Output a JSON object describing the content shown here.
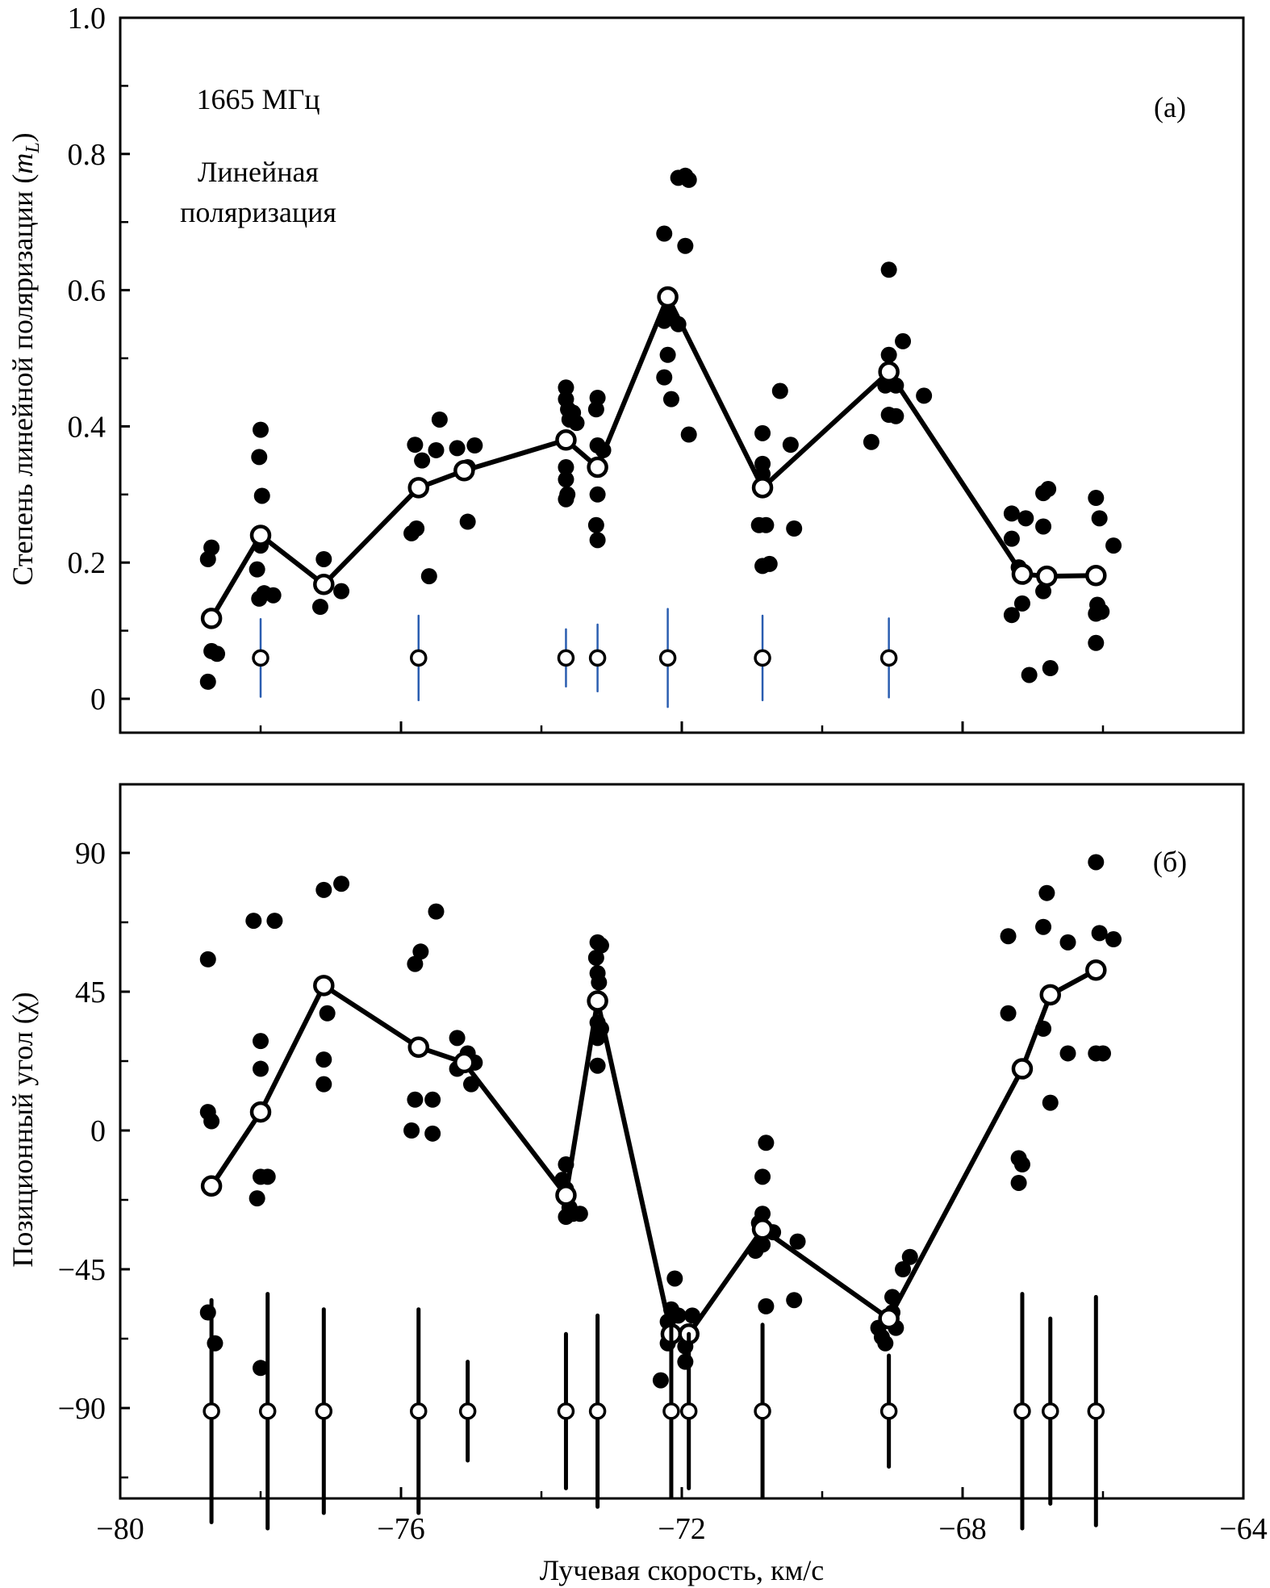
{
  "chart_data": [
    {
      "panel_label": "(a)",
      "type": "scatter",
      "annotations": [
        "1665 МГц",
        "Линейная",
        "поляризация"
      ],
      "xlabel": "",
      "ylabel": "Степень линейной поляризации (m_L)",
      "ylabel_main": "Степень линейной поляризации (",
      "ylabel_sym": "m",
      "ylabel_sub": "L",
      "ylabel_close": ")",
      "xlim": [
        -80,
        -64
      ],
      "ylim": [
        -0.05,
        1.0
      ],
      "x_ticks_major": [
        -80,
        -76,
        -72,
        -68,
        -64
      ],
      "x_ticks_minor": [
        -78,
        -74,
        -70,
        -66
      ],
      "y_ticks": [
        {
          "value": 0,
          "label": "0"
        },
        {
          "value": 0.2,
          "label": "0.2"
        },
        {
          "value": 0.4,
          "label": "0.4"
        },
        {
          "value": 0.6,
          "label": "0.6"
        },
        {
          "value": 0.8,
          "label": "0.8"
        },
        {
          "value": 1.0,
          "label": "1.0"
        }
      ],
      "y_ticks_minor": [
        0.1,
        0.3,
        0.5,
        0.7,
        0.9
      ],
      "grid": false,
      "series": [
        {
          "name": "individual measurements",
          "marker": "filled-circle",
          "points": [
            [
              -78.75,
              0.205
            ],
            [
              -78.7,
              0.222
            ],
            [
              -78.7,
              0.07
            ],
            [
              -78.62,
              0.066
            ],
            [
              -78.75,
              0.025
            ],
            [
              -78.0,
              0.395
            ],
            [
              -78.02,
              0.355
            ],
            [
              -77.98,
              0.298
            ],
            [
              -78.0,
              0.225
            ],
            [
              -78.05,
              0.19
            ],
            [
              -77.95,
              0.155
            ],
            [
              -78.02,
              0.147
            ],
            [
              -77.82,
              0.152
            ],
            [
              -77.1,
              0.205
            ],
            [
              -77.15,
              0.135
            ],
            [
              -76.85,
              0.158
            ],
            [
              -75.8,
              0.373
            ],
            [
              -75.7,
              0.35
            ],
            [
              -75.45,
              0.41
            ],
            [
              -75.5,
              0.365
            ],
            [
              -75.2,
              0.368
            ],
            [
              -75.85,
              0.243
            ],
            [
              -75.78,
              0.25
            ],
            [
              -75.6,
              0.18
            ],
            [
              -74.95,
              0.372
            ],
            [
              -75.05,
              0.34
            ],
            [
              -75.05,
              0.26
            ],
            [
              -73.65,
              0.457
            ],
            [
              -73.65,
              0.44
            ],
            [
              -73.62,
              0.425
            ],
            [
              -73.6,
              0.41
            ],
            [
              -73.55,
              0.42
            ],
            [
              -73.5,
              0.405
            ],
            [
              -73.65,
              0.34
            ],
            [
              -73.65,
              0.322
            ],
            [
              -73.63,
              0.3
            ],
            [
              -73.65,
              0.293
            ],
            [
              -73.2,
              0.442
            ],
            [
              -73.22,
              0.425
            ],
            [
              -73.2,
              0.372
            ],
            [
              -73.12,
              0.365
            ],
            [
              -73.2,
              0.3
            ],
            [
              -73.22,
              0.255
            ],
            [
              -73.2,
              0.233
            ],
            [
              -72.25,
              0.683
            ],
            [
              -72.2,
              0.565
            ],
            [
              -72.25,
              0.555
            ],
            [
              -72.05,
              0.55
            ],
            [
              -72.2,
              0.505
            ],
            [
              -72.25,
              0.472
            ],
            [
              -72.15,
              0.44
            ],
            [
              -71.95,
              0.665
            ],
            [
              -71.9,
              0.388
            ],
            [
              -72.05,
              0.765
            ],
            [
              -71.95,
              0.768
            ],
            [
              -71.9,
              0.762
            ],
            [
              -70.85,
              0.39
            ],
            [
              -70.85,
              0.345
            ],
            [
              -70.85,
              0.33
            ],
            [
              -70.6,
              0.452
            ],
            [
              -70.45,
              0.373
            ],
            [
              -70.9,
              0.255
            ],
            [
              -70.8,
              0.255
            ],
            [
              -70.85,
              0.195
            ],
            [
              -70.75,
              0.198
            ],
            [
              -70.4,
              0.25
            ],
            [
              -69.05,
              0.63
            ],
            [
              -69.05,
              0.505
            ],
            [
              -68.85,
              0.525
            ],
            [
              -69.1,
              0.46
            ],
            [
              -68.95,
              0.46
            ],
            [
              -69.05,
              0.417
            ],
            [
              -68.95,
              0.415
            ],
            [
              -69.3,
              0.377
            ],
            [
              -68.55,
              0.445
            ],
            [
              -67.3,
              0.272
            ],
            [
              -67.3,
              0.235
            ],
            [
              -67.1,
              0.265
            ],
            [
              -67.2,
              0.193
            ],
            [
              -67.15,
              0.14
            ],
            [
              -67.3,
              0.123
            ],
            [
              -67.05,
              0.035
            ],
            [
              -66.85,
              0.302
            ],
            [
              -66.78,
              0.308
            ],
            [
              -66.85,
              0.253
            ],
            [
              -66.85,
              0.158
            ],
            [
              -66.75,
              0.045
            ],
            [
              -66.1,
              0.295
            ],
            [
              -66.05,
              0.265
            ],
            [
              -65.85,
              0.225
            ],
            [
              -66.08,
              0.138
            ],
            [
              -66.02,
              0.128
            ],
            [
              -66.1,
              0.125
            ],
            [
              -66.1,
              0.082
            ]
          ]
        },
        {
          "name": "mean",
          "marker": "open-circle",
          "connected": true,
          "points": [
            [
              -78.7,
              0.118
            ],
            [
              -78.0,
              0.24
            ],
            [
              -77.1,
              0.168
            ],
            [
              -75.75,
              0.31
            ],
            [
              -75.1,
              0.335
            ],
            [
              -73.65,
              0.38
            ],
            [
              -73.2,
              0.34
            ],
            [
              -72.2,
              0.59
            ],
            [
              -70.85,
              0.31
            ],
            [
              -69.05,
              0.48
            ],
            [
              -67.15,
              0.183
            ],
            [
              -66.8,
              0.18
            ],
            [
              -66.1,
              0.181
            ]
          ]
        },
        {
          "name": "error bars",
          "marker": "open-circle",
          "color": "#2a5db0",
          "center": 0.06,
          "bars": [
            {
              "x": -78.0,
              "half": 0.057
            },
            {
              "x": -75.75,
              "half": 0.062
            },
            {
              "x": -73.65,
              "half": 0.042
            },
            {
              "x": -73.2,
              "half": 0.049
            },
            {
              "x": -72.2,
              "half": 0.072
            },
            {
              "x": -70.85,
              "half": 0.062
            },
            {
              "x": -69.05,
              "half": 0.058
            }
          ]
        }
      ]
    },
    {
      "panel_label": "(б)",
      "type": "scatter",
      "xlabel": "Лучевая скорость, км/с",
      "ylabel": "Позиционный угол (χ)",
      "xlim": [
        -80,
        -64
      ],
      "ylim": [
        -127,
        107
      ],
      "x_ticks_major": [
        {
          "value": -80,
          "label": "−80"
        },
        {
          "value": -76,
          "label": "−76"
        },
        {
          "value": -72,
          "label": "−72"
        },
        {
          "value": -68,
          "label": "−68"
        },
        {
          "value": -64,
          "label": "−64"
        }
      ],
      "x_ticks_minor": [
        -78,
        -74,
        -70,
        -66
      ],
      "y_ticks": [
        {
          "value": 90,
          "label": "90"
        },
        {
          "value": 45,
          "label": "45"
        },
        {
          "value": 0,
          "label": "0"
        },
        {
          "value": -45,
          "label": "−45"
        },
        {
          "value": -90,
          "label": "−90"
        }
      ],
      "y_ticks_minor": [
        67.5,
        22.5,
        -22.5,
        -67.5,
        -112.5
      ],
      "grid": false,
      "series": [
        {
          "name": "individual measurements",
          "marker": "filled-circle",
          "points": [
            [
              -78.75,
              55.5
            ],
            [
              -78.75,
              6
            ],
            [
              -78.7,
              3
            ],
            [
              -78.75,
              -59
            ],
            [
              -78.65,
              -69
            ],
            [
              -78.1,
              68
            ],
            [
              -77.8,
              68
            ],
            [
              -78.0,
              29
            ],
            [
              -78.0,
              20
            ],
            [
              -78.0,
              -15
            ],
            [
              -77.9,
              -15
            ],
            [
              -78.05,
              -22
            ],
            [
              -78.0,
              -77
            ],
            [
              -77.1,
              78
            ],
            [
              -76.85,
              80
            ],
            [
              -77.05,
              38
            ],
            [
              -77.1,
              23
            ],
            [
              -77.1,
              15
            ],
            [
              -75.8,
              54
            ],
            [
              -75.72,
              58
            ],
            [
              -75.5,
              71
            ],
            [
              -75.8,
              10
            ],
            [
              -75.55,
              10
            ],
            [
              -75.85,
              0
            ],
            [
              -75.55,
              -1
            ],
            [
              -75.2,
              30
            ],
            [
              -75.2,
              20
            ],
            [
              -75.05,
              25
            ],
            [
              -74.95,
              22
            ],
            [
              -75.0,
              15
            ],
            [
              -73.65,
              -11
            ],
            [
              -73.7,
              -16
            ],
            [
              -73.65,
              -19
            ],
            [
              -73.6,
              -25
            ],
            [
              -73.55,
              -27
            ],
            [
              -73.65,
              -28
            ],
            [
              -73.45,
              -27
            ],
            [
              -73.2,
              61
            ],
            [
              -73.15,
              60
            ],
            [
              -73.22,
              56
            ],
            [
              -73.2,
              51
            ],
            [
              -73.18,
              48
            ],
            [
              -73.2,
              35
            ],
            [
              -73.15,
              33
            ],
            [
              -73.2,
              30
            ],
            [
              -73.2,
              21
            ],
            [
              -72.3,
              -81
            ],
            [
              -72.2,
              -62
            ],
            [
              -72.15,
              -58
            ],
            [
              -72.1,
              -48
            ],
            [
              -72.05,
              -60
            ],
            [
              -71.95,
              -70
            ],
            [
              -71.95,
              -75
            ],
            [
              -71.85,
              -60
            ],
            [
              -72.2,
              -69
            ],
            [
              -70.8,
              -4
            ],
            [
              -70.85,
              -15
            ],
            [
              -70.85,
              -27
            ],
            [
              -70.9,
              -30
            ],
            [
              -70.7,
              -33
            ],
            [
              -70.85,
              -37
            ],
            [
              -70.95,
              -39
            ],
            [
              -70.35,
              -36
            ],
            [
              -70.8,
              -57
            ],
            [
              -70.4,
              -55
            ],
            [
              -68.75,
              -41
            ],
            [
              -68.85,
              -45
            ],
            [
              -69.0,
              -54
            ],
            [
              -69.0,
              -59
            ],
            [
              -69.2,
              -64
            ],
            [
              -69.15,
              -67
            ],
            [
              -68.95,
              -64
            ],
            [
              -69.1,
              -69
            ],
            [
              -67.35,
              38
            ],
            [
              -67.35,
              63
            ],
            [
              -67.2,
              -9
            ],
            [
              -67.15,
              -11
            ],
            [
              -67.2,
              -17
            ],
            [
              -66.85,
              66
            ],
            [
              -66.8,
              77
            ],
            [
              -66.85,
              33
            ],
            [
              -66.75,
              9
            ],
            [
              -66.5,
              61
            ],
            [
              -66.5,
              25
            ],
            [
              -66.1,
              87
            ],
            [
              -66.05,
              64
            ],
            [
              -65.85,
              62
            ],
            [
              -66.1,
              25
            ],
            [
              -66.0,
              25
            ]
          ]
        },
        {
          "name": "mean",
          "marker": "open-circle",
          "connected": true,
          "points": [
            [
              -78.7,
              -18
            ],
            [
              -78.0,
              6
            ],
            [
              -77.1,
              47
            ],
            [
              -75.75,
              27
            ],
            [
              -75.1,
              22
            ],
            [
              -73.65,
              -21
            ],
            [
              -73.2,
              42
            ],
            [
              -72.15,
              -66
            ],
            [
              -71.9,
              -66
            ],
            [
              -70.85,
              -32
            ],
            [
              -69.05,
              -61
            ],
            [
              -67.15,
              20
            ],
            [
              -66.75,
              44
            ],
            [
              -66.1,
              52
            ]
          ]
        },
        {
          "name": "error bars",
          "marker": "open-circle",
          "color": "#000000",
          "center": -91,
          "bars": [
            {
              "x": -78.7,
              "half": 36
            },
            {
              "x": -77.9,
              "half": 38
            },
            {
              "x": -77.1,
              "half": 33
            },
            {
              "x": -75.75,
              "half": 33
            },
            {
              "x": -75.05,
              "half": 16
            },
            {
              "x": -73.65,
              "half": 25
            },
            {
              "x": -73.2,
              "half": 31
            },
            {
              "x": -72.15,
              "half": 28
            },
            {
              "x": -71.9,
              "half": 25
            },
            {
              "x": -70.85,
              "half": 28
            },
            {
              "x": -69.05,
              "half": 18
            },
            {
              "x": -67.15,
              "half": 38
            },
            {
              "x": -66.75,
              "half": 30
            },
            {
              "x": -66.1,
              "half": 37
            }
          ]
        }
      ]
    }
  ]
}
